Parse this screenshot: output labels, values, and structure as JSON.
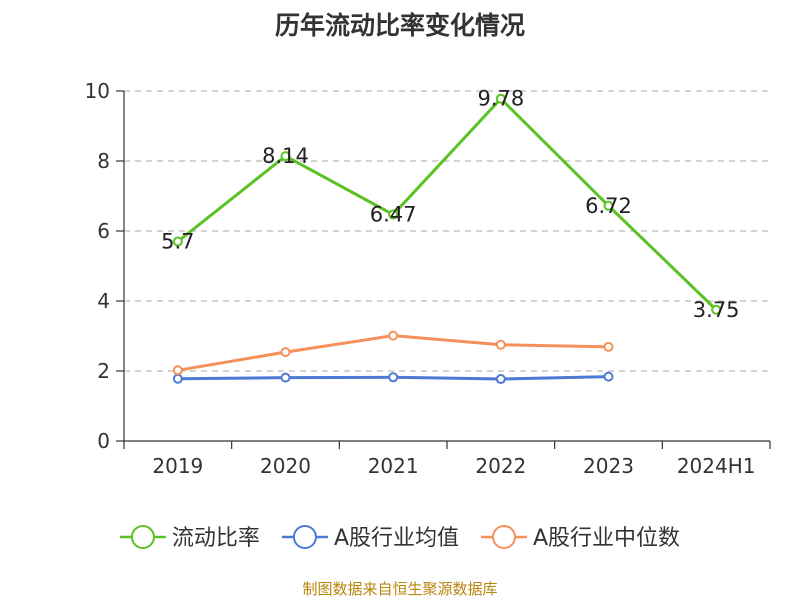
{
  "title": "历年流动比率变化情况",
  "source_note": "制图数据来自恒生聚源数据库",
  "colors": {
    "axis": "#333333",
    "grid": "#bbbbbb"
  },
  "chart_data": {
    "type": "line",
    "title": "历年流动比率变化情况",
    "xlabel": "",
    "ylabel": "",
    "categories": [
      "2019",
      "2020",
      "2021",
      "2022",
      "2023",
      "2024H1"
    ],
    "ylim": [
      0,
      10
    ],
    "yticks": [
      0,
      2,
      4,
      6,
      8,
      10
    ],
    "grid": true,
    "legend_position": "bottom",
    "series": [
      {
        "name": "流动比率",
        "color": "#5bc224",
        "values": [
          5.7,
          8.14,
          6.47,
          9.78,
          6.72,
          3.75
        ],
        "labels": [
          "5.7",
          "8.14",
          "6.47",
          "9.78",
          "6.72",
          "3.75"
        ],
        "show_labels": true
      },
      {
        "name": "A股行业均值",
        "color": "#4b7bd4",
        "values": [
          1.78,
          1.81,
          1.82,
          1.77,
          1.84,
          null
        ],
        "show_labels": false
      },
      {
        "name": "A股行业中位数",
        "color": "#f5905a",
        "values": [
          2.02,
          2.54,
          3.01,
          2.75,
          2.69,
          null
        ],
        "show_labels": false
      }
    ]
  }
}
